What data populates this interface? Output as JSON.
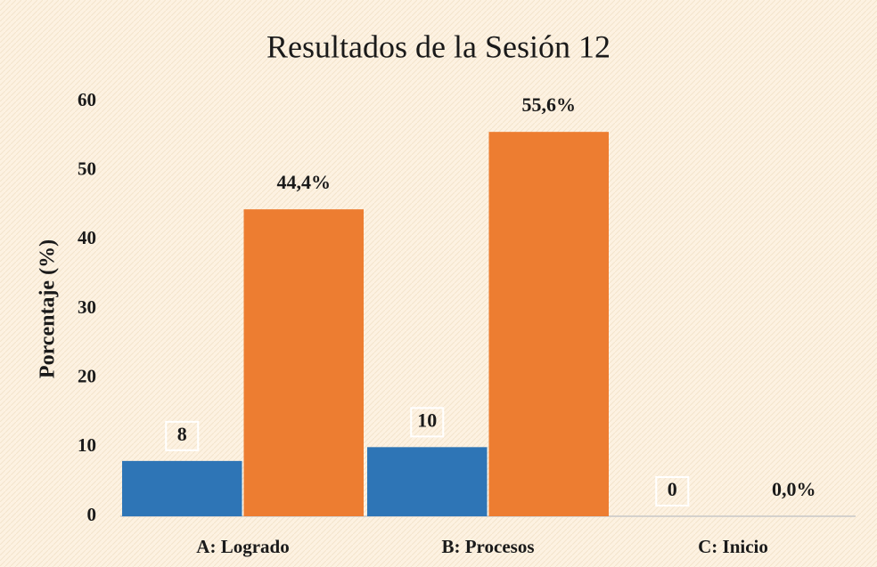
{
  "chart_data": {
    "type": "bar",
    "title": "Resultados de la Sesión 12",
    "ylabel": "Porcentaje (%)",
    "categories": [
      "A: Logrado",
      "B: Procesos",
      "C: Inicio"
    ],
    "series": [
      {
        "color": "#2e75b6",
        "values": [
          8,
          10,
          0
        ]
      },
      {
        "color": "#ed7d31",
        "values": [
          44.4,
          55.6,
          0.0
        ],
        "value_labels": [
          "44,4%",
          "55,6%",
          "0,0%"
        ]
      }
    ],
    "ylim": [
      0,
      60
    ],
    "yticks": [
      0,
      10,
      20,
      30,
      40,
      50,
      60
    ]
  }
}
